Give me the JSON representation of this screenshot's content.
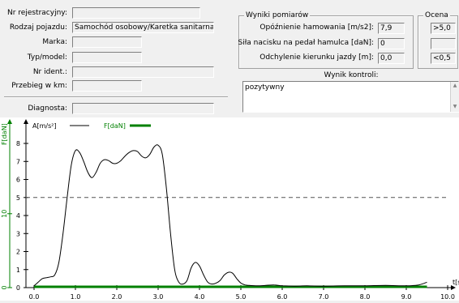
{
  "form": {
    "nr_rejestracyjny": {
      "label": "Nr rejestracyjny:",
      "value": ""
    },
    "rodzaj_pojazdu": {
      "label": "Rodzaj pojazdu:",
      "value": "Samochód osobowy/Karetka sanitarna"
    },
    "marka": {
      "label": "Marka:",
      "value": ""
    },
    "typ_model": {
      "label": "Typ/model:",
      "value": ""
    },
    "nr_ident": {
      "label": "Nr ident.:",
      "value": ""
    },
    "przebieg": {
      "label": "Przebieg w km:",
      "value": ""
    },
    "diagnosta": {
      "label": "Diagnosta:",
      "value": ""
    }
  },
  "wyniki": {
    "title": "Wyniki pomiarów",
    "opoznienie": {
      "label": "Opóźnienie hamowania [m/s2]:",
      "value": "7,9"
    },
    "sila": {
      "label": "Siła nacisku na pedał hamulca [daN]:",
      "value": "0"
    },
    "odchylenie": {
      "label": "Odchylenie kierunku jazdy [m]:",
      "value": "0,0"
    }
  },
  "ocena": {
    "title": "Ocena",
    "opoznienie": ">5,0",
    "sila": "",
    "odchylenie": "<0,5"
  },
  "wynik_kontroli": {
    "label": "Wynik kontroli:",
    "value": "pozytywny"
  },
  "chart_data": {
    "type": "line",
    "legend": [
      {
        "name": "A[m/s²]",
        "color": "#000000"
      },
      {
        "name": "F[daN]",
        "color": "#008000"
      }
    ],
    "xlabel": "t[s]",
    "ylabel_left": "F[daN]",
    "x_ticks": [
      "0.0",
      "1.0",
      "2.0",
      "3.0",
      "4.0",
      "5.0",
      "6.0",
      "7.0",
      "8.0",
      "9.0",
      "10.0"
    ],
    "y_ticks_a": [
      "0",
      "1",
      "2",
      "3",
      "4",
      "5",
      "6",
      "7",
      "8"
    ],
    "y_ticks_f": [
      "0",
      "10"
    ],
    "xlim": [
      0,
      10
    ],
    "ylim": [
      0,
      8.5
    ],
    "threshold": 5.0,
    "series": [
      {
        "name": "A[m/s²]",
        "x": [
          0.0,
          0.1,
          0.2,
          0.3,
          0.4,
          0.5,
          0.6,
          0.7,
          0.8,
          0.9,
          1.0,
          1.1,
          1.2,
          1.3,
          1.4,
          1.5,
          1.6,
          1.7,
          1.8,
          1.9,
          2.0,
          2.1,
          2.2,
          2.3,
          2.4,
          2.5,
          2.6,
          2.7,
          2.8,
          2.9,
          3.0,
          3.1,
          3.2,
          3.3,
          3.4,
          3.5,
          3.6,
          3.7,
          3.8,
          3.9,
          4.0,
          4.1,
          4.2,
          4.3,
          4.4,
          4.5,
          4.6,
          4.7,
          4.8,
          4.9,
          5.0,
          5.1,
          5.2,
          5.4,
          5.6,
          5.8,
          6.0,
          6.3,
          6.6,
          7.0,
          7.5,
          8.0,
          8.5,
          9.0,
          9.3,
          9.5
        ],
        "values": [
          0.1,
          0.3,
          0.5,
          0.55,
          0.6,
          0.7,
          1.4,
          3.0,
          5.0,
          6.8,
          7.6,
          7.5,
          7.0,
          6.4,
          6.1,
          6.4,
          6.9,
          7.1,
          7.05,
          6.9,
          6.9,
          7.05,
          7.3,
          7.5,
          7.6,
          7.55,
          7.3,
          7.2,
          7.4,
          7.8,
          7.9,
          7.4,
          5.5,
          3.0,
          1.0,
          0.3,
          0.2,
          0.4,
          1.1,
          1.4,
          1.2,
          0.7,
          0.3,
          0.2,
          0.25,
          0.4,
          0.7,
          0.85,
          0.8,
          0.5,
          0.25,
          0.15,
          0.12,
          0.1,
          0.12,
          0.15,
          0.1,
          0.08,
          0.1,
          0.08,
          0.1,
          0.1,
          0.12,
          0.1,
          0.15,
          0.3
        ]
      },
      {
        "name": "F[daN]",
        "x": [
          0,
          9.5
        ],
        "values": [
          0,
          0
        ]
      }
    ]
  }
}
